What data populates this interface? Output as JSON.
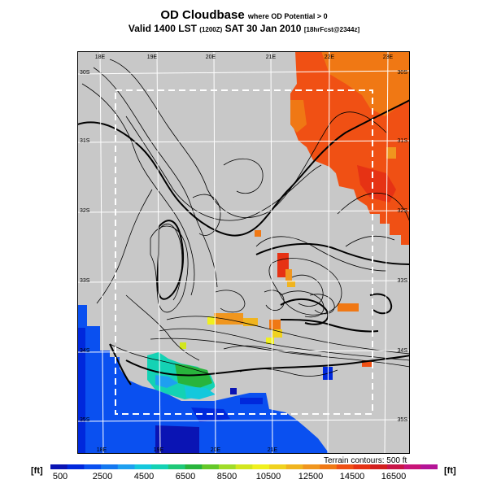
{
  "title": {
    "main": "OD Cloudbase",
    "suffix": "where OD Potential > 0",
    "valid": "Valid 1400 LST",
    "valid_code": "(1200Z)",
    "date": "SAT 30 Jan 2010",
    "run": "[18hrFcst@2344z]"
  },
  "map": {
    "lon_labels_top": [
      "18E",
      "19E",
      "20E",
      "21E",
      "22E",
      "23E"
    ],
    "lon_labels_bottom": [
      "18E",
      "19E",
      "20E",
      "21E"
    ],
    "lat_labels_left": [
      "30S",
      "31S",
      "32S",
      "33S",
      "34S",
      "35S"
    ],
    "lat_labels_right": [
      "30S",
      "31S",
      "32S",
      "33S",
      "34S",
      "35S"
    ],
    "colors": {
      "land": "#c8c8c8",
      "grid": "#ffffff",
      "contour": "#000000",
      "box": "#ffffff"
    }
  },
  "terrain_note": "Terrain contours: 500 ft",
  "unit_left": "[ft]",
  "unit_right": "[ft]",
  "colorbar": {
    "labels": [
      "500",
      "2500",
      "4500",
      "6500",
      "8500",
      "10500",
      "12500",
      "14500",
      "16500"
    ],
    "colors": [
      "#0a14b4",
      "#0028dc",
      "#0a50f0",
      "#1478f0",
      "#1ea0f0",
      "#14c8dc",
      "#14d2b4",
      "#1ec878",
      "#28b43c",
      "#64c828",
      "#a0dc28",
      "#d2e61e",
      "#f0f01e",
      "#f0d21e",
      "#f0b41e",
      "#f0961e",
      "#f07814",
      "#f05014",
      "#e63214",
      "#d21e1e",
      "#c81446",
      "#c81478",
      "#b41496"
    ]
  }
}
